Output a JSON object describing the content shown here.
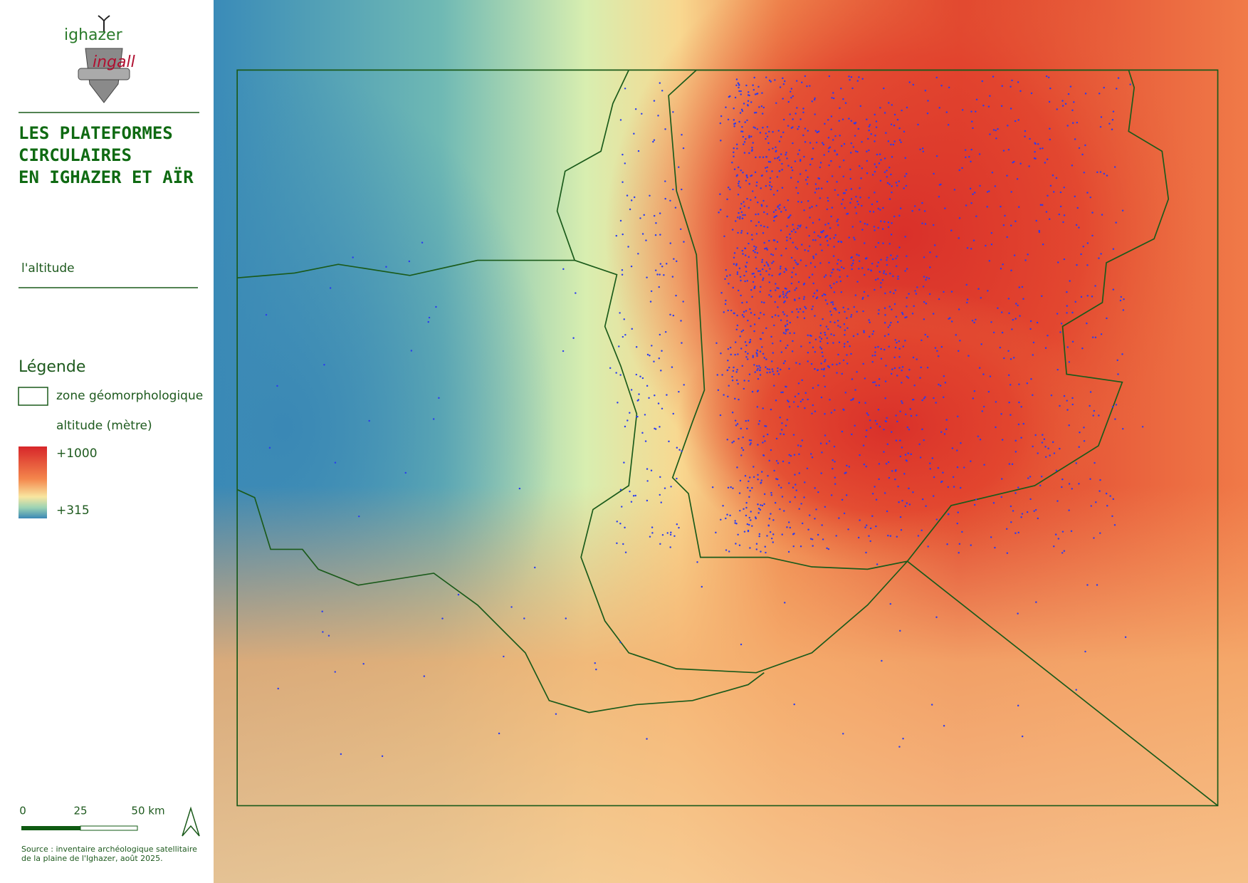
{
  "logo": {
    "top": "ighazer",
    "bottom": "ingall"
  },
  "title": {
    "lines": [
      "LES PLATEFORMES",
      "CIRCULAIRES",
      "EN IGHAZER ET AÏR"
    ]
  },
  "subtitle": "l'altitude",
  "legend": {
    "title": "Légende",
    "items": [
      "zone géomorphologique",
      "altitude (mètre)"
    ],
    "ramp": {
      "high": "+1000",
      "low": "+315"
    }
  },
  "scale_bar": {
    "labels": [
      "0",
      "25",
      "50 km"
    ]
  },
  "source": [
    "Source : inventaire archéologique satellitaire",
    "de la plaine de l'Ighazer, août 2025."
  ]
}
